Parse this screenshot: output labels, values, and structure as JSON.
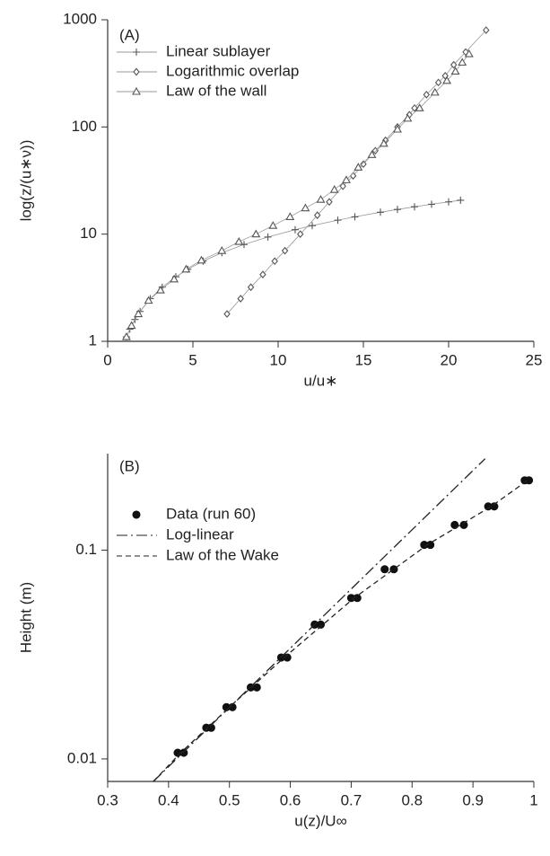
{
  "chart_data": [
    {
      "type": "line",
      "annotation": "(A)",
      "xlabel": "u/u∗",
      "ylabel": "log(z/(u∗ν))",
      "log_y": true,
      "xlim": [
        0,
        25
      ],
      "xticks": [
        0,
        5,
        10,
        15,
        20,
        25
      ],
      "ylim": [
        1,
        1000
      ],
      "yticks": [
        1,
        10,
        100,
        1000
      ],
      "series": [
        {
          "name": "Linear sublayer",
          "color": "#555555",
          "marker": "plus",
          "line": "solid",
          "x": [
            1.1,
            1.3,
            1.6,
            1.9,
            2.5,
            3.2,
            4,
            4.7,
            5.6,
            6.7,
            8,
            9.4,
            11,
            12,
            13.5,
            14.5,
            16,
            17,
            18,
            19,
            20,
            20.7
          ],
          "values": [
            1.1,
            1.3,
            1.6,
            1.9,
            2.5,
            3.2,
            4,
            4.7,
            5.6,
            6.7,
            8,
            9.4,
            11,
            12,
            13.5,
            14.5,
            16,
            17,
            18,
            19,
            20,
            20.7
          ]
        },
        {
          "name": "Logarithmic overlap",
          "color": "#555555",
          "marker": "diamond",
          "line": "solid",
          "x": [
            7,
            7.8,
            8.4,
            9.1,
            9.8,
            10.4,
            11.3,
            12.3,
            13,
            13.8,
            14.4,
            15,
            15.7,
            16.3,
            17,
            17.7,
            18,
            18.7,
            19.4,
            19.8,
            20.3,
            21,
            22.2
          ],
          "values": [
            1.8,
            2.5,
            3.2,
            4.2,
            5.6,
            7,
            10,
            15,
            20,
            28,
            35,
            45,
            60,
            75,
            100,
            130,
            150,
            200,
            260,
            300,
            380,
            500,
            800
          ]
        },
        {
          "name": "Law of the wall",
          "color": "#555555",
          "marker": "triangle",
          "line": "solid",
          "x": [
            1.1,
            1.4,
            1.8,
            2.4,
            3.1,
            3.9,
            4.6,
            5.5,
            6.7,
            7.7,
            8.7,
            9.7,
            10.7,
            11.6,
            12.5,
            13.3,
            14,
            14.7,
            15.5,
            16.2,
            17,
            17.6,
            18.3,
            19.2,
            19.9,
            20.4,
            20.8,
            21.2
          ],
          "values": [
            1.1,
            1.4,
            1.8,
            2.4,
            3,
            3.8,
            4.7,
            5.7,
            7,
            8.5,
            10,
            12,
            14.5,
            17.5,
            21,
            26,
            32,
            42,
            55,
            70,
            95,
            120,
            150,
            210,
            270,
            330,
            400,
            480
          ]
        }
      ]
    },
    {
      "type": "line",
      "annotation": "(B)",
      "xlabel": "u(z)/U∞",
      "ylabel": "Height (m)",
      "log_y": true,
      "xlim": [
        0.3,
        1
      ],
      "xticks": [
        0.3,
        0.4,
        0.5,
        0.6,
        0.7,
        0.8,
        0.9,
        1
      ],
      "ylim": [
        0.0078,
        0.29
      ],
      "yticks": [
        0.01,
        0.1
      ],
      "series": [
        {
          "name": "Data (run 60)",
          "color": "#111111",
          "marker": "circle",
          "line": "none",
          "x": [
            0.415,
            0.425,
            0.462,
            0.47,
            0.495,
            0.505,
            0.535,
            0.545,
            0.585,
            0.595,
            0.64,
            0.65,
            0.7,
            0.71,
            0.755,
            0.77,
            0.82,
            0.83,
            0.87,
            0.885,
            0.925,
            0.935,
            0.985,
            0.992
          ],
          "values": [
            0.0107,
            0.0107,
            0.0141,
            0.0141,
            0.0177,
            0.0177,
            0.022,
            0.022,
            0.0306,
            0.0306,
            0.044,
            0.044,
            0.059,
            0.059,
            0.081,
            0.081,
            0.106,
            0.106,
            0.132,
            0.132,
            0.162,
            0.162,
            0.216,
            0.216
          ]
        },
        {
          "name": "Log-linear",
          "color": "#222222",
          "marker": "none",
          "line": "dashdot",
          "x": [
            0.375,
            0.92
          ],
          "values": [
            0.0078,
            0.274
          ]
        },
        {
          "name": "Law of the Wake",
          "color": "#222222",
          "marker": "none",
          "line": "dashed",
          "x": [
            0.375,
            0.42,
            0.5,
            0.59,
            0.705,
            0.825,
            0.93,
            0.99
          ],
          "values": [
            0.0078,
            0.0107,
            0.0177,
            0.0306,
            0.059,
            0.106,
            0.162,
            0.216
          ]
        }
      ]
    }
  ]
}
